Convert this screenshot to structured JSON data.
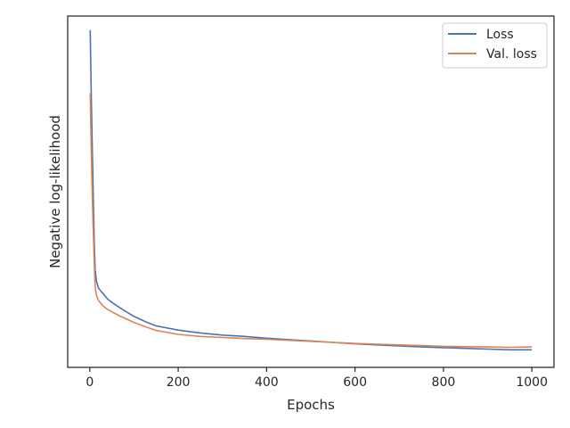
{
  "chart_data": {
    "type": "line",
    "title": "",
    "xlabel": "Epochs",
    "ylabel": "Negative log-likelihood",
    "xlim": [
      -50,
      1050
    ],
    "ylim": [
      0.0,
      1.0
    ],
    "x_ticks": [
      0,
      200,
      400,
      600,
      800,
      1000
    ],
    "x_tick_labels": [
      "0",
      "200",
      "400",
      "600",
      "800",
      "1000"
    ],
    "y_tick_labels_shown": false,
    "grid": false,
    "legend_position": "top-right",
    "series": [
      {
        "name": "Loss",
        "color": "#4c72b0",
        "x": [
          1,
          3,
          5,
          8,
          10,
          12,
          15,
          20,
          30,
          40,
          50,
          70,
          100,
          130,
          150,
          200,
          250,
          300,
          350,
          400,
          450,
          500,
          550,
          600,
          650,
          700,
          750,
          800,
          850,
          900,
          950,
          1000
        ],
        "y": [
          0.96,
          0.8,
          0.66,
          0.48,
          0.36,
          0.28,
          0.245,
          0.225,
          0.21,
          0.195,
          0.185,
          0.168,
          0.145,
          0.128,
          0.118,
          0.106,
          0.098,
          0.092,
          0.088,
          0.083,
          0.079,
          0.075,
          0.071,
          0.067,
          0.064,
          0.061,
          0.058,
          0.056,
          0.054,
          0.052,
          0.05,
          0.05
        ]
      },
      {
        "name": "Val. loss",
        "color": "#dd8452",
        "x": [
          1,
          3,
          5,
          8,
          10,
          12,
          15,
          20,
          30,
          40,
          50,
          70,
          100,
          130,
          150,
          200,
          250,
          300,
          350,
          400,
          450,
          500,
          550,
          600,
          650,
          700,
          750,
          800,
          850,
          900,
          950,
          1000
        ],
        "y": [
          0.78,
          0.64,
          0.52,
          0.38,
          0.3,
          0.23,
          0.205,
          0.19,
          0.175,
          0.165,
          0.158,
          0.145,
          0.128,
          0.114,
          0.105,
          0.094,
          0.088,
          0.085,
          0.082,
          0.08,
          0.077,
          0.074,
          0.071,
          0.068,
          0.066,
          0.064,
          0.062,
          0.06,
          0.059,
          0.058,
          0.057,
          0.058
        ]
      }
    ]
  }
}
